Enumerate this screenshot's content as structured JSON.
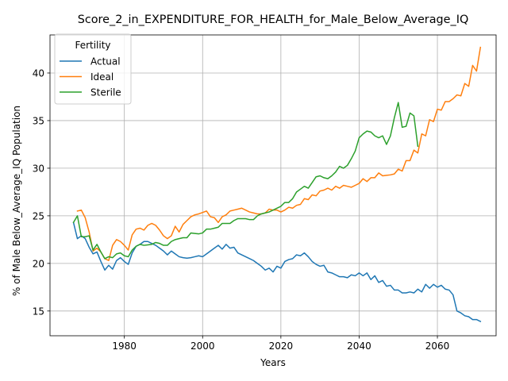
{
  "chart_data": {
    "type": "line",
    "title": "Score_2_in_EXPENDITURE_FOR_HEALTH_for_Male_Below_Average_IQ",
    "xlabel": "Years",
    "ylabel": "% of Male Below_Average_IQ Population",
    "xlim": [
      1961,
      2075
    ],
    "ylim": [
      12.4,
      44.0
    ],
    "x_ticks": [
      1980,
      2000,
      2020,
      2040,
      2060
    ],
    "y_ticks": [
      15,
      20,
      25,
      30,
      35,
      40
    ],
    "grid": true,
    "legend": {
      "title": "Fertility",
      "position": "upper-left"
    },
    "series": [
      {
        "name": "Actual",
        "color": "#1f77b4",
        "points": [
          [
            1967,
            24.3
          ],
          [
            1968,
            22.6
          ],
          [
            1969,
            22.9
          ],
          [
            1970,
            22.6
          ],
          [
            1971,
            21.7
          ],
          [
            1972,
            21.0
          ],
          [
            1973,
            21.2
          ],
          [
            1974,
            20.2
          ],
          [
            1975,
            19.3
          ],
          [
            1976,
            19.8
          ],
          [
            1977,
            19.4
          ],
          [
            1978,
            20.3
          ],
          [
            1979,
            20.6
          ],
          [
            1980,
            20.2
          ],
          [
            1981,
            19.9
          ],
          [
            1982,
            21.1
          ],
          [
            1983,
            21.8
          ],
          [
            1984,
            22.0
          ],
          [
            1985,
            22.3
          ],
          [
            1986,
            22.3
          ],
          [
            1987,
            22.1
          ],
          [
            1988,
            21.9
          ],
          [
            1989,
            21.6
          ],
          [
            1990,
            21.3
          ],
          [
            1991,
            20.9
          ],
          [
            1992,
            21.3
          ],
          [
            1993,
            21.0
          ],
          [
            1994,
            20.7
          ],
          [
            1995,
            20.6
          ],
          [
            1996,
            20.55
          ],
          [
            1997,
            20.6
          ],
          [
            1998,
            20.7
          ],
          [
            1999,
            20.8
          ],
          [
            2000,
            20.7
          ],
          [
            2001,
            21.0
          ],
          [
            2002,
            21.3
          ],
          [
            2003,
            21.6
          ],
          [
            2004,
            21.9
          ],
          [
            2005,
            21.5
          ],
          [
            2006,
            22.0
          ],
          [
            2007,
            21.6
          ],
          [
            2008,
            21.7
          ],
          [
            2009,
            21.1
          ],
          [
            2010,
            20.9
          ],
          [
            2011,
            20.7
          ],
          [
            2012,
            20.5
          ],
          [
            2013,
            20.3
          ],
          [
            2014,
            20.0
          ],
          [
            2015,
            19.7
          ],
          [
            2016,
            19.3
          ],
          [
            2017,
            19.5
          ],
          [
            2018,
            19.1
          ],
          [
            2019,
            19.7
          ],
          [
            2020,
            19.5
          ],
          [
            2021,
            20.2
          ],
          [
            2022,
            20.4
          ],
          [
            2023,
            20.5
          ],
          [
            2024,
            20.9
          ],
          [
            2025,
            20.8
          ],
          [
            2026,
            21.1
          ],
          [
            2027,
            20.7
          ],
          [
            2028,
            20.2
          ],
          [
            2029,
            19.9
          ],
          [
            2030,
            19.7
          ],
          [
            2031,
            19.8
          ],
          [
            2032,
            19.1
          ],
          [
            2033,
            19.0
          ],
          [
            2034,
            18.8
          ],
          [
            2035,
            18.6
          ],
          [
            2036,
            18.6
          ],
          [
            2037,
            18.5
          ],
          [
            2038,
            18.8
          ],
          [
            2039,
            18.7
          ],
          [
            2040,
            19.0
          ],
          [
            2041,
            18.7
          ],
          [
            2042,
            19.0
          ],
          [
            2043,
            18.3
          ],
          [
            2044,
            18.7
          ],
          [
            2045,
            18.0
          ],
          [
            2046,
            18.2
          ],
          [
            2047,
            17.6
          ],
          [
            2048,
            17.7
          ],
          [
            2049,
            17.2
          ],
          [
            2050,
            17.2
          ],
          [
            2051,
            16.9
          ],
          [
            2052,
            16.9
          ],
          [
            2053,
            17.0
          ],
          [
            2054,
            16.9
          ],
          [
            2055,
            17.3
          ],
          [
            2056,
            17.0
          ],
          [
            2057,
            17.8
          ],
          [
            2058,
            17.4
          ],
          [
            2059,
            17.8
          ],
          [
            2060,
            17.5
          ],
          [
            2061,
            17.7
          ],
          [
            2062,
            17.3
          ],
          [
            2063,
            17.2
          ],
          [
            2064,
            16.7
          ],
          [
            2065,
            15.0
          ],
          [
            2066,
            14.8
          ],
          [
            2067,
            14.5
          ],
          [
            2068,
            14.4
          ],
          [
            2069,
            14.1
          ],
          [
            2070,
            14.1
          ],
          [
            2071,
            13.9
          ]
        ]
      },
      {
        "name": "Ideal",
        "color": "#ff7f0e",
        "points": [
          [
            1968,
            25.5
          ],
          [
            1969,
            25.6
          ],
          [
            1970,
            24.8
          ],
          [
            1971,
            23.3
          ],
          [
            1972,
            21.3
          ],
          [
            1973,
            21.6
          ],
          [
            1974,
            21.2
          ],
          [
            1975,
            20.5
          ],
          [
            1976,
            20.3
          ],
          [
            1977,
            21.9
          ],
          [
            1978,
            22.5
          ],
          [
            1979,
            22.3
          ],
          [
            1980,
            21.9
          ],
          [
            1981,
            21.4
          ],
          [
            1982,
            23.0
          ],
          [
            1983,
            23.6
          ],
          [
            1984,
            23.7
          ],
          [
            1985,
            23.5
          ],
          [
            1986,
            24.0
          ],
          [
            1987,
            24.2
          ],
          [
            1988,
            24.0
          ],
          [
            1989,
            23.5
          ],
          [
            1990,
            22.9
          ],
          [
            1991,
            22.6
          ],
          [
            1992,
            22.9
          ],
          [
            1993,
            23.9
          ],
          [
            1994,
            23.3
          ],
          [
            1995,
            24.1
          ],
          [
            1996,
            24.5
          ],
          [
            1997,
            24.9
          ],
          [
            1998,
            25.1
          ],
          [
            1999,
            25.2
          ],
          [
            2000,
            25.35
          ],
          [
            2001,
            25.5
          ],
          [
            2002,
            24.9
          ],
          [
            2003,
            24.8
          ],
          [
            2004,
            24.3
          ],
          [
            2005,
            24.9
          ],
          [
            2006,
            25.1
          ],
          [
            2007,
            25.5
          ],
          [
            2008,
            25.6
          ],
          [
            2009,
            25.7
          ],
          [
            2010,
            25.8
          ],
          [
            2011,
            25.6
          ],
          [
            2012,
            25.4
          ],
          [
            2013,
            25.3
          ],
          [
            2014,
            25.2
          ],
          [
            2015,
            25.2
          ],
          [
            2016,
            25.3
          ],
          [
            2017,
            25.7
          ],
          [
            2018,
            25.6
          ],
          [
            2019,
            25.6
          ],
          [
            2020,
            25.4
          ],
          [
            2021,
            25.6
          ],
          [
            2022,
            25.9
          ],
          [
            2023,
            25.8
          ],
          [
            2024,
            26.1
          ],
          [
            2025,
            26.2
          ],
          [
            2026,
            26.8
          ],
          [
            2027,
            26.7
          ],
          [
            2028,
            27.2
          ],
          [
            2029,
            27.1
          ],
          [
            2030,
            27.6
          ],
          [
            2031,
            27.7
          ],
          [
            2032,
            27.9
          ],
          [
            2033,
            27.7
          ],
          [
            2034,
            28.1
          ],
          [
            2035,
            27.9
          ],
          [
            2036,
            28.2
          ],
          [
            2037,
            28.1
          ],
          [
            2038,
            28.0
          ],
          [
            2039,
            28.2
          ],
          [
            2040,
            28.4
          ],
          [
            2041,
            28.9
          ],
          [
            2042,
            28.6
          ],
          [
            2043,
            29.0
          ],
          [
            2044,
            29.0
          ],
          [
            2045,
            29.5
          ],
          [
            2046,
            29.2
          ],
          [
            2047,
            29.25
          ],
          [
            2048,
            29.3
          ],
          [
            2049,
            29.4
          ],
          [
            2050,
            29.9
          ],
          [
            2051,
            29.7
          ],
          [
            2052,
            30.8
          ],
          [
            2053,
            30.8
          ],
          [
            2054,
            31.9
          ],
          [
            2055,
            31.6
          ],
          [
            2056,
            33.6
          ],
          [
            2057,
            33.4
          ],
          [
            2058,
            35.1
          ],
          [
            2059,
            34.9
          ],
          [
            2060,
            36.2
          ],
          [
            2061,
            36.1
          ],
          [
            2062,
            37.0
          ],
          [
            2063,
            37.0
          ],
          [
            2064,
            37.3
          ],
          [
            2065,
            37.7
          ],
          [
            2066,
            37.6
          ],
          [
            2067,
            38.9
          ],
          [
            2068,
            38.6
          ],
          [
            2069,
            40.8
          ],
          [
            2070,
            40.2
          ],
          [
            2071,
            42.7
          ]
        ]
      },
      {
        "name": "Sterile",
        "color": "#2ca02c",
        "points": [
          [
            1967,
            24.3
          ],
          [
            1968,
            25.0
          ],
          [
            1969,
            22.8
          ],
          [
            1970,
            22.8
          ],
          [
            1971,
            22.9
          ],
          [
            1972,
            21.4
          ],
          [
            1973,
            22.0
          ],
          [
            1974,
            21.2
          ],
          [
            1975,
            20.5
          ],
          [
            1976,
            20.7
          ],
          [
            1977,
            20.6
          ],
          [
            1978,
            21.0
          ],
          [
            1979,
            21.1
          ],
          [
            1980,
            20.8
          ],
          [
            1981,
            20.7
          ],
          [
            1982,
            21.4
          ],
          [
            1983,
            21.8
          ],
          [
            1984,
            22.0
          ],
          [
            1985,
            21.9
          ],
          [
            1986,
            21.95
          ],
          [
            1987,
            22.0
          ],
          [
            1988,
            22.2
          ],
          [
            1989,
            22.1
          ],
          [
            1990,
            21.9
          ],
          [
            1991,
            21.9
          ],
          [
            1992,
            22.3
          ],
          [
            1993,
            22.5
          ],
          [
            1994,
            22.6
          ],
          [
            1995,
            22.7
          ],
          [
            1996,
            22.7
          ],
          [
            1997,
            23.2
          ],
          [
            1998,
            23.15
          ],
          [
            1999,
            23.1
          ],
          [
            2000,
            23.2
          ],
          [
            2001,
            23.6
          ],
          [
            2002,
            23.6
          ],
          [
            2003,
            23.7
          ],
          [
            2004,
            23.8
          ],
          [
            2005,
            24.2
          ],
          [
            2006,
            24.2
          ],
          [
            2007,
            24.2
          ],
          [
            2008,
            24.5
          ],
          [
            2009,
            24.7
          ],
          [
            2010,
            24.7
          ],
          [
            2011,
            24.7
          ],
          [
            2012,
            24.6
          ],
          [
            2013,
            24.6
          ],
          [
            2014,
            25.0
          ],
          [
            2015,
            25.2
          ],
          [
            2016,
            25.3
          ],
          [
            2017,
            25.4
          ],
          [
            2018,
            25.6
          ],
          [
            2019,
            25.8
          ],
          [
            2020,
            26.0
          ],
          [
            2021,
            26.4
          ],
          [
            2022,
            26.4
          ],
          [
            2023,
            26.8
          ],
          [
            2024,
            27.5
          ],
          [
            2025,
            27.8
          ],
          [
            2026,
            28.1
          ],
          [
            2027,
            27.9
          ],
          [
            2028,
            28.5
          ],
          [
            2029,
            29.1
          ],
          [
            2030,
            29.2
          ],
          [
            2031,
            29.0
          ],
          [
            2032,
            28.9
          ],
          [
            2033,
            29.2
          ],
          [
            2034,
            29.6
          ],
          [
            2035,
            30.2
          ],
          [
            2036,
            30.0
          ],
          [
            2037,
            30.3
          ],
          [
            2038,
            31.0
          ],
          [
            2039,
            31.8
          ],
          [
            2040,
            33.2
          ],
          [
            2041,
            33.6
          ],
          [
            2042,
            33.9
          ],
          [
            2043,
            33.8
          ],
          [
            2044,
            33.4
          ],
          [
            2045,
            33.2
          ],
          [
            2046,
            33.4
          ],
          [
            2047,
            32.5
          ],
          [
            2048,
            33.4
          ],
          [
            2049,
            35.3
          ],
          [
            2050,
            36.9
          ],
          [
            2051,
            34.3
          ],
          [
            2052,
            34.4
          ],
          [
            2053,
            35.8
          ],
          [
            2054,
            35.5
          ],
          [
            2055,
            32.3
          ]
        ]
      }
    ]
  }
}
